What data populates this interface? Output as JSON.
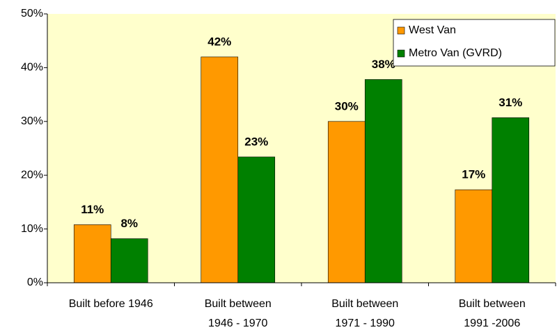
{
  "chart_data": {
    "type": "bar",
    "categories": [
      [
        "Built before 1946"
      ],
      [
        "Built between",
        "1946 - 1970"
      ],
      [
        "Built between",
        "1971 - 1990"
      ],
      [
        "Built between",
        "1991 -2006"
      ]
    ],
    "series": [
      {
        "name": "West Van",
        "color": "#ff9900",
        "values": [
          10.8,
          42,
          30,
          17.3
        ],
        "value_labels": [
          "11%",
          "42%",
          "30%",
          "17%"
        ]
      },
      {
        "name": "Metro Van (GVRD)",
        "color": "#008000",
        "values": [
          8.2,
          23.4,
          37.8,
          30.7
        ],
        "value_labels": [
          "8%",
          "23%",
          "38%",
          "31%"
        ]
      }
    ],
    "ylim": [
      0,
      50
    ],
    "yticks": [
      {
        "value": 0,
        "label": "0%"
      },
      {
        "value": 10,
        "label": "10%"
      },
      {
        "value": 20,
        "label": "20%"
      },
      {
        "value": 30,
        "label": "30%"
      },
      {
        "value": 40,
        "label": "40%"
      },
      {
        "value": 50,
        "label": "50%"
      }
    ],
    "plot_background": "#ffffcc",
    "legend": "top-right"
  }
}
